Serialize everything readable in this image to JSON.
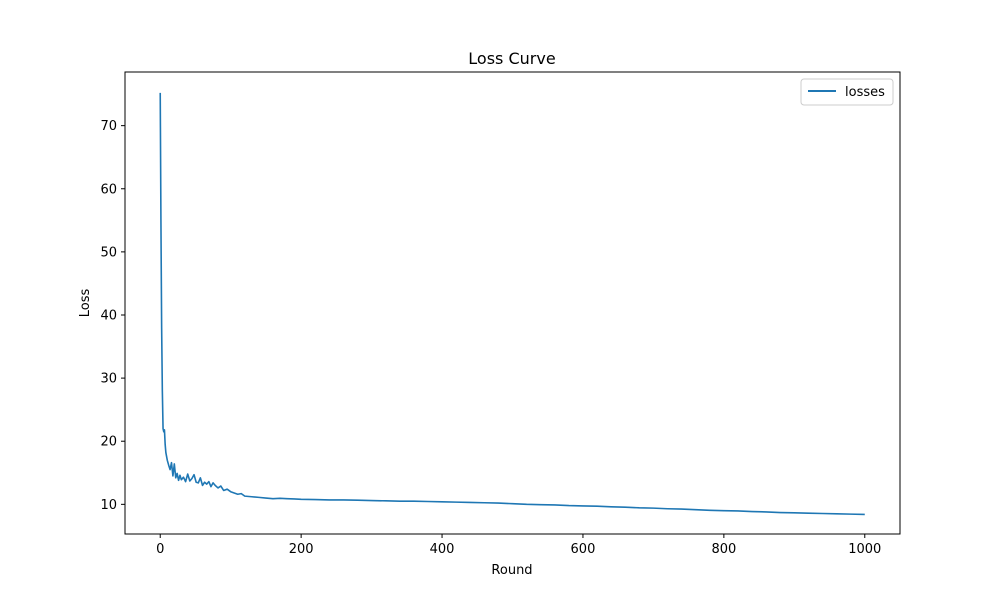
{
  "chart_data": {
    "type": "line",
    "title": "Loss Curve",
    "xlabel": "Round",
    "ylabel": "Loss",
    "xlim": [
      -50,
      1050
    ],
    "ylim": [
      5.3,
      78.5
    ],
    "xticks": [
      0,
      200,
      400,
      600,
      800,
      1000
    ],
    "yticks": [
      10,
      20,
      30,
      40,
      50,
      60,
      70
    ],
    "grid": false,
    "legend_position": "top-right",
    "colors": {
      "series": "#1f77b4",
      "axes": "#000000",
      "background": "#ffffff"
    },
    "series": [
      {
        "name": "losses",
        "x": [
          0,
          1,
          2,
          3,
          4,
          5,
          6,
          7,
          8,
          10,
          12,
          14,
          16,
          18,
          20,
          22,
          24,
          26,
          28,
          30,
          33,
          36,
          39,
          42,
          45,
          48,
          51,
          54,
          57,
          60,
          63,
          66,
          69,
          72,
          75,
          78,
          82,
          86,
          90,
          95,
          100,
          105,
          110,
          115,
          120,
          130,
          140,
          150,
          160,
          170,
          180,
          190,
          200,
          220,
          240,
          260,
          280,
          300,
          320,
          340,
          360,
          380,
          400,
          420,
          440,
          460,
          480,
          500,
          520,
          540,
          560,
          580,
          600,
          620,
          640,
          660,
          680,
          700,
          720,
          740,
          760,
          780,
          800,
          820,
          840,
          860,
          880,
          900,
          920,
          940,
          960,
          980,
          1000
        ],
        "y": [
          75.2,
          55.0,
          38.0,
          28.0,
          22.0,
          21.5,
          21.8,
          19.5,
          18.2,
          17.0,
          16.2,
          15.5,
          16.6,
          14.5,
          16.4,
          14.2,
          14.9,
          13.8,
          14.6,
          13.9,
          14.3,
          13.6,
          14.8,
          13.7,
          14.1,
          14.7,
          13.5,
          13.4,
          14.2,
          13.0,
          13.5,
          13.2,
          13.6,
          12.8,
          13.4,
          13.0,
          12.6,
          12.9,
          12.2,
          12.4,
          12.0,
          11.8,
          11.6,
          11.7,
          11.3,
          11.2,
          11.1,
          11.0,
          10.9,
          10.95,
          10.9,
          10.85,
          10.8,
          10.75,
          10.7,
          10.7,
          10.65,
          10.6,
          10.55,
          10.5,
          10.5,
          10.45,
          10.4,
          10.35,
          10.3,
          10.25,
          10.2,
          10.1,
          10.0,
          9.95,
          9.9,
          9.8,
          9.75,
          9.7,
          9.6,
          9.55,
          9.45,
          9.4,
          9.3,
          9.25,
          9.15,
          9.05,
          9.0,
          8.95,
          8.85,
          8.8,
          8.7,
          8.65,
          8.6,
          8.55,
          8.5,
          8.45,
          8.4
        ]
      }
    ]
  }
}
